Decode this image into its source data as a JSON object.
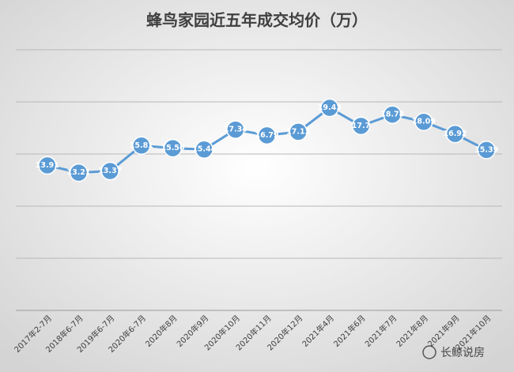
{
  "chart_data": {
    "type": "line",
    "title": "蜂鸟家园近五年成交均价（万）",
    "categories": [
      "2017年2-7月",
      "2018年6-7月",
      "2019年6-7月",
      "2020年6-7月",
      "2020年8月",
      "2020年9月",
      "2020年10月",
      "2020年11月",
      "2020年12月",
      "2021年4月",
      "2021年6月",
      "2021年7月",
      "2021年8月",
      "2021年9月",
      "2021年10月"
    ],
    "series": [
      {
        "name": "成交均价",
        "color": "#5b9bd5",
        "values": [
          13.91,
          13.21,
          13.37,
          15.81,
          15.56,
          15.44,
          17.34,
          16.79,
          17.13,
          19.43,
          17.7,
          18.78,
          18.09,
          16.92,
          15.39
        ]
      }
    ],
    "ylim": [
      0,
      25
    ],
    "yticks": [
      0,
      5,
      10,
      15,
      20,
      25
    ],
    "grid": true,
    "watermark": "长鲸说房"
  }
}
